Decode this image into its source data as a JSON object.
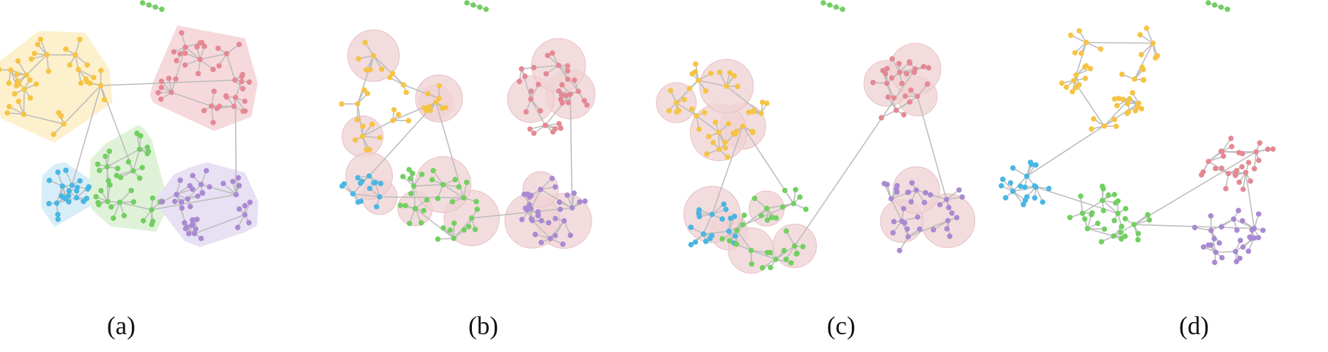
{
  "panels": [
    {
      "caption": "(a)",
      "mode": "hull"
    },
    {
      "caption": "(b)",
      "mode": "bubbles"
    },
    {
      "caption": "(c)",
      "mode": "bubbles"
    },
    {
      "caption": "(d)",
      "mode": "orthogonal"
    }
  ],
  "colors": {
    "yellow": "#f6c445",
    "pink": "#e48994",
    "green": "#72cf62",
    "purple": "#a98ad2",
    "blue": "#4ab6e3",
    "edge": "#bdbdbd",
    "hull_yellow": "#fdf0cc",
    "hull_pink": "#f6d9dc",
    "hull_green": "#dff2d8",
    "hull_purple": "#e8e0f3",
    "hull_blue": "#d7eef9",
    "bubble": "#f0d3d5"
  }
}
